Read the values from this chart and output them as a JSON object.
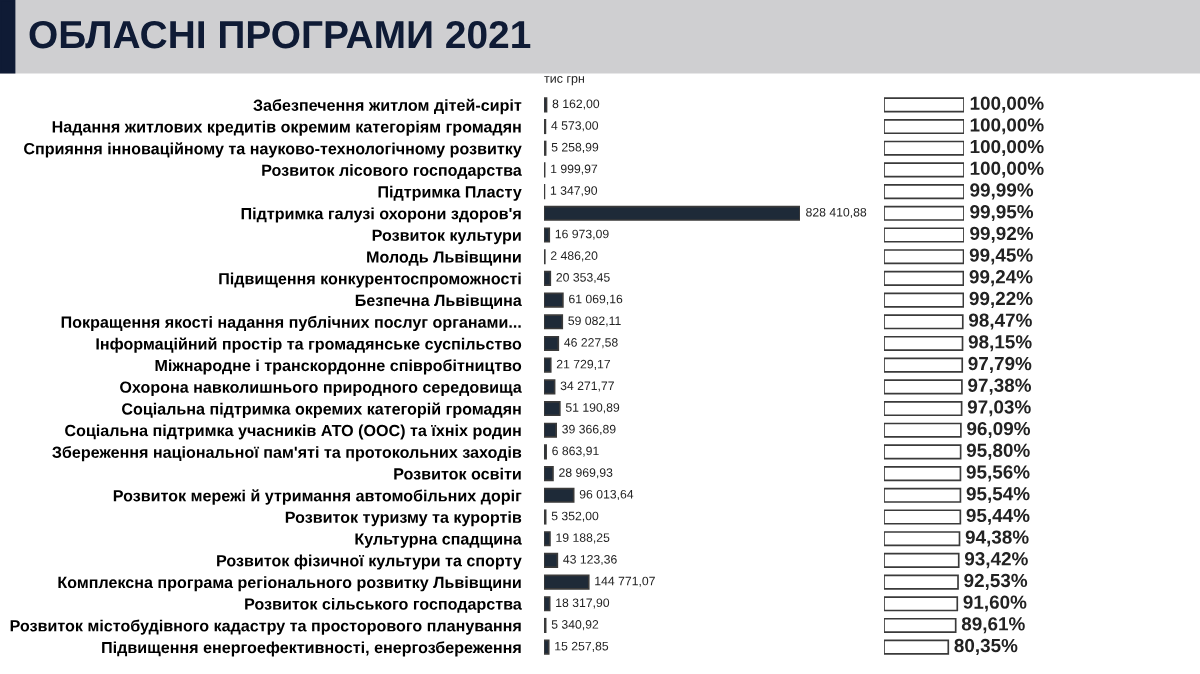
{
  "chart_data": [
    {
      "type": "bar",
      "orientation": "horizontal",
      "title": "ОБЛАСНІ ПРОГРАМИ 2021",
      "annotations": [
        "тис грн"
      ],
      "tick_labels": "y",
      "data_labels": true,
      "color": "#1e2a38",
      "categories": [
        "Забезпечення житлом дітей-сиріт",
        "Надання житлових кредитів окремим категоріям громадян",
        "Сприяння інноваційному та науково-технологічному розвитку",
        "Розвиток лісового господарства",
        "Підтримка Пласту",
        "Підтримка галузі охорони здоров'я",
        "Розвиток культури",
        "Молодь Львівщини",
        "Підвищення конкурентоспроможності",
        "Безпечна Львівщина",
        "Покращення якості надання публічних послуг органами...",
        "Інформаційний простір та громадянське суспільство",
        "Міжнародне і транскордонне співробітництво",
        "Охорона навколишнього природного середовища",
        "Соціальна підтримка окремих категорій громадян",
        "Соціальна підтримка учасників АТО (ООС) та їхніх родин",
        "Збереження національної пам'яті та протокольних заходів",
        "Розвиток освіти",
        "Розвиток мережі й утримання автомобільних доріг",
        "Розвиток туризму та курортів",
        "Культурна спадщина",
        "Розвиток фізичної культури та спорту",
        "Комплексна програма регіонального розвитку Львівщини",
        "Розвиток сільського господарства",
        "Розвиток містобудівного кадастру та просторового планування",
        "Підвищення енергоефективності, енергозбереження"
      ],
      "values": [
        8162.0,
        4573.0,
        5258.99,
        1999.97,
        1347.9,
        828410.88,
        16973.09,
        2486.2,
        20353.45,
        61069.16,
        59082.11,
        46227.58,
        21729.17,
        34271.77,
        51190.89,
        39366.89,
        6863.91,
        28969.93,
        96013.64,
        5352.0,
        19188.25,
        43123.36,
        144771.07,
        18317.9,
        5340.92,
        15257.85
      ],
      "value_labels": [
        "8 162,00",
        "4 573,00",
        "5 258,99",
        "1 999,97",
        "1 347,90",
        "828 410,88",
        "16 973,09",
        "2 486,20",
        "20 353,45",
        "61 069,16",
        "59 082,11",
        "46 227,58",
        "21 729,17",
        "34 271,77",
        "51 190,89",
        "39 366,89",
        "6 863,91",
        "28 969,93",
        "96 013,64",
        "5 352,00",
        "19 188,25",
        "43 123,36",
        "144 771,07",
        "18 317,90",
        "5 340,92",
        "15 257,85"
      ]
    },
    {
      "type": "bar",
      "orientation": "horizontal",
      "tick_labels": false,
      "data_labels": true,
      "color": "#ffffff",
      "categories": [
        null,
        null,
        null,
        null,
        null,
        null,
        null,
        null,
        null,
        null,
        null,
        null,
        null,
        null,
        null,
        null,
        null,
        null,
        null,
        null,
        null,
        null,
        null,
        null,
        null,
        null
      ],
      "values": [
        100.0,
        100.0,
        100.0,
        100.0,
        99.99,
        99.95,
        99.92,
        99.45,
        99.24,
        99.22,
        98.47,
        98.15,
        97.79,
        97.38,
        97.03,
        96.09,
        95.8,
        95.56,
        95.54,
        95.44,
        94.38,
        93.42,
        92.53,
        91.6,
        89.61,
        80.35
      ],
      "value_labels": [
        "100,00%",
        "100,00%",
        "100,00%",
        "100,00%",
        "99,99%",
        "99,95%",
        "99,92%",
        "99,45%",
        "99,24%",
        "99,22%",
        "98,47%",
        "98,15%",
        "97,79%",
        "97,38%",
        "97,03%",
        "96,09%",
        "95,80%",
        "95,56%",
        "95,54%",
        "95,44%",
        "94,38%",
        "93,42%",
        "92,53%",
        "91,60%",
        "89,61%",
        "80,35%"
      ]
    }
  ]
}
